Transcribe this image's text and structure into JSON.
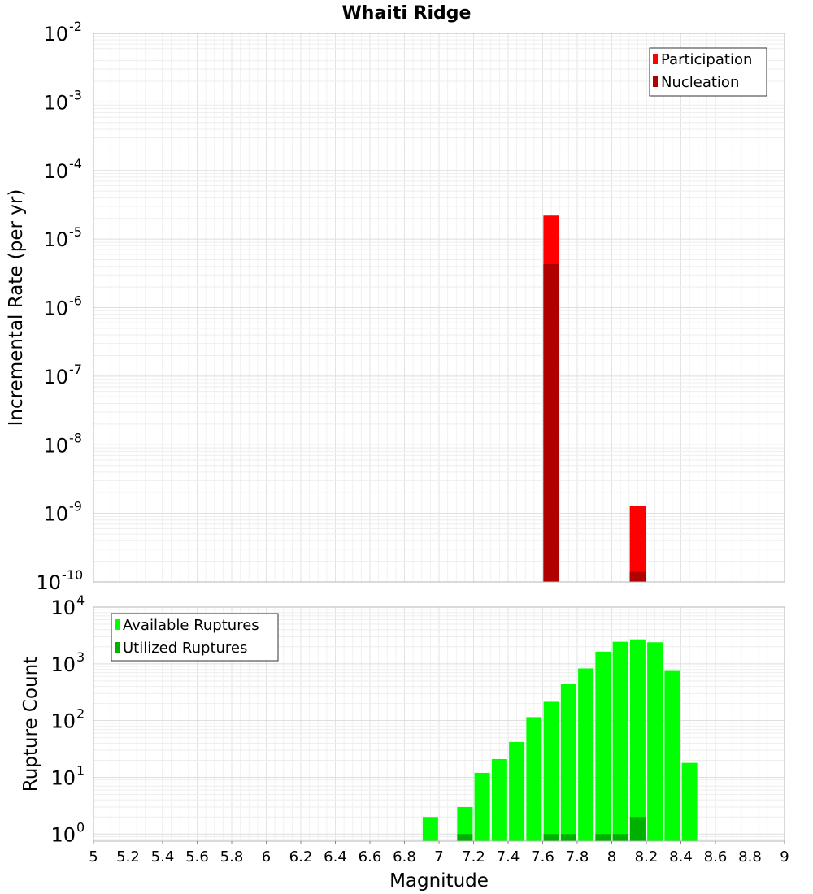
{
  "title": "Whaiti Ridge",
  "chart_data": [
    {
      "type": "bar",
      "panel": "top",
      "ylabel": "Incremental Rate (per yr)",
      "yscale": "log",
      "ylim": [
        1e-10,
        0.01
      ],
      "xlim": [
        5,
        9
      ],
      "ytick_exponents": [
        "-10",
        "-9",
        "-8",
        "-7",
        "-6",
        "-5",
        "-4",
        "-3",
        "-2"
      ],
      "ytick_base": "10",
      "legend_position": "top-right",
      "series": [
        {
          "name": "Participation",
          "color": "#ff0000",
          "points": [
            {
              "x": 7.65,
              "y": 2.2e-05
            },
            {
              "x": 8.15,
              "y": 1.3e-09
            }
          ]
        },
        {
          "name": "Nucleation",
          "color": "#b00000",
          "points": [
            {
              "x": 7.65,
              "y": 4.3e-06
            },
            {
              "x": 8.15,
              "y": 1.4e-10
            }
          ]
        }
      ]
    },
    {
      "type": "bar",
      "panel": "bottom",
      "ylabel": "Rupture Count",
      "xlabel": "Magnitude",
      "yscale": "log",
      "ylim": [
        0.75,
        10000.0
      ],
      "xlim": [
        5,
        9
      ],
      "ytick_exponents": [
        "0",
        "1",
        "2",
        "3",
        "4"
      ],
      "ytick_base": "10",
      "xtick_labels": [
        "5",
        "5.2",
        "5.4",
        "5.6",
        "5.8",
        "6",
        "6.2",
        "6.4",
        "6.6",
        "6.8",
        "7",
        "7.2",
        "7.4",
        "7.6",
        "7.8",
        "8",
        "8.2",
        "8.4",
        "8.6",
        "8.8",
        "9"
      ],
      "legend_position": "top-left",
      "series": [
        {
          "name": "Available Ruptures",
          "color": "#00ff00",
          "points": [
            {
              "x": 6.95,
              "y": 2
            },
            {
              "x": 7.15,
              "y": 3
            },
            {
              "x": 7.25,
              "y": 12
            },
            {
              "x": 7.35,
              "y": 21
            },
            {
              "x": 7.45,
              "y": 42
            },
            {
              "x": 7.55,
              "y": 115
            },
            {
              "x": 7.65,
              "y": 215
            },
            {
              "x": 7.75,
              "y": 440
            },
            {
              "x": 7.85,
              "y": 830
            },
            {
              "x": 7.95,
              "y": 1640
            },
            {
              "x": 8.05,
              "y": 2450
            },
            {
              "x": 8.15,
              "y": 2700
            },
            {
              "x": 8.25,
              "y": 2400
            },
            {
              "x": 8.35,
              "y": 750
            },
            {
              "x": 8.45,
              "y": 18
            }
          ]
        },
        {
          "name": "Utilized Ruptures",
          "color": "#00b000",
          "points": [
            {
              "x": 7.15,
              "y": 1
            },
            {
              "x": 7.65,
              "y": 1
            },
            {
              "x": 7.75,
              "y": 1
            },
            {
              "x": 7.95,
              "y": 1
            },
            {
              "x": 8.05,
              "y": 1
            },
            {
              "x": 8.15,
              "y": 2
            }
          ]
        }
      ]
    }
  ]
}
